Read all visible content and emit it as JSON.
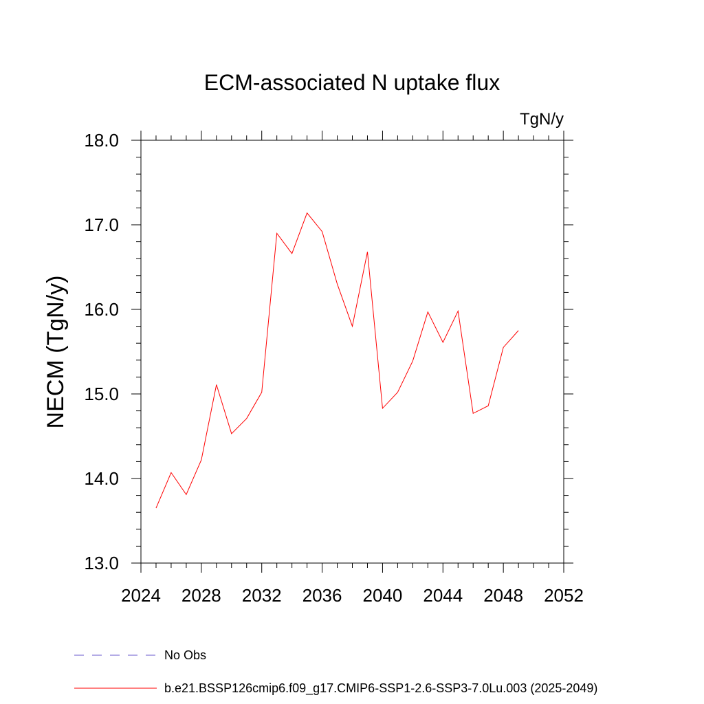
{
  "chart_data": {
    "type": "line",
    "title": "ECM-associated N uptake flux",
    "units": "TgN/y",
    "ylabel": "NECM  (TgN/y)",
    "xlabel": "",
    "xlim": [
      2024,
      2052
    ],
    "ylim": [
      13.0,
      18.0
    ],
    "x_ticks": [
      2024,
      2028,
      2032,
      2036,
      2040,
      2044,
      2048,
      2052
    ],
    "y_ticks": [
      13.0,
      14.0,
      15.0,
      16.0,
      17.0,
      18.0
    ],
    "x_tick_labels": [
      "2024",
      "2028",
      "2032",
      "2036",
      "2040",
      "2044",
      "2048",
      "2052"
    ],
    "y_tick_labels": [
      "13.0",
      "14.0",
      "15.0",
      "16.0",
      "17.0",
      "18.0"
    ],
    "grid": false,
    "legend_position": "bottom-left",
    "series": [
      {
        "name": "b.e21.BSSP126cmip6.f09_g17.CMIP6-SSP1-2.6-SSP3-7.0Lu.003 (2025-2049)",
        "color": "#ff0000",
        "style": "solid",
        "x": [
          2025,
          2026,
          2027,
          2028,
          2029,
          2030,
          2031,
          2032,
          2033,
          2034,
          2035,
          2036,
          2037,
          2038,
          2039,
          2040,
          2041,
          2042,
          2043,
          2044,
          2045,
          2046,
          2047,
          2048,
          2049
        ],
        "y": [
          13.65,
          14.07,
          13.81,
          14.22,
          15.11,
          14.53,
          14.71,
          15.02,
          16.9,
          16.66,
          17.14,
          16.92,
          16.3,
          15.8,
          16.68,
          14.83,
          15.02,
          15.39,
          15.97,
          15.61,
          15.98,
          14.77,
          14.86,
          15.55,
          15.75
        ]
      }
    ],
    "legend": [
      {
        "label": "No Obs",
        "color": "#6a5acd",
        "style": "dashed"
      },
      {
        "label": "b.e21.BSSP126cmip6.f09_g17.CMIP6-SSP1-2.6-SSP3-7.0Lu.003 (2025-2049)",
        "color": "#ff0000",
        "style": "solid"
      }
    ]
  }
}
